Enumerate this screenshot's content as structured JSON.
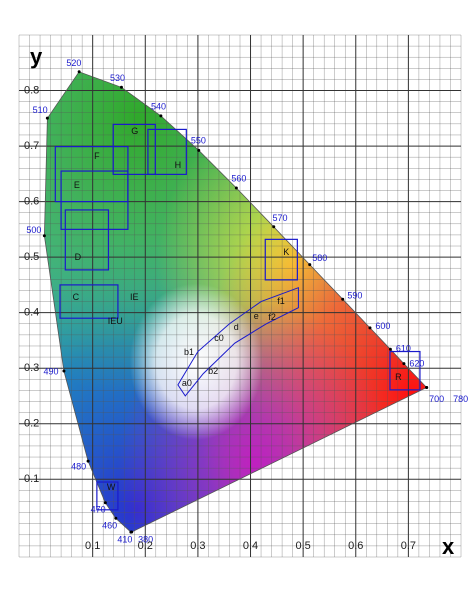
{
  "chart_data": {
    "type": "chromaticity",
    "x_label": "x",
    "y_label": "y",
    "xlim": [
      -0.04,
      0.8
    ],
    "ylim": [
      -0.04,
      0.9
    ],
    "xticks": [
      0.1,
      0.2,
      0.3,
      0.4,
      0.5,
      0.6,
      0.7
    ],
    "yticks": [
      0.1,
      0.2,
      0.3,
      0.4,
      0.5,
      0.6,
      0.7,
      0.8
    ],
    "grid": true,
    "minor_grid_step": 0.02,
    "spectral_locus": {
      "wavelengths": [
        380,
        410,
        460,
        470,
        480,
        490,
        500,
        510,
        520,
        530,
        540,
        550,
        560,
        570,
        580,
        590,
        600,
        610,
        620,
        700,
        780
      ],
      "x": [
        0.1741,
        0.1727,
        0.144,
        0.1241,
        0.0913,
        0.0454,
        0.0082,
        0.0139,
        0.0743,
        0.1547,
        0.2296,
        0.3016,
        0.3731,
        0.4441,
        0.5125,
        0.5752,
        0.627,
        0.6658,
        0.6915,
        0.7347,
        0.7347
      ],
      "y": [
        0.005,
        0.0048,
        0.0297,
        0.0578,
        0.1327,
        0.295,
        0.5384,
        0.7502,
        0.8338,
        0.8059,
        0.7543,
        0.6923,
        0.6245,
        0.5547,
        0.4866,
        0.4242,
        0.3725,
        0.334,
        0.3083,
        0.2653,
        0.2653
      ]
    },
    "regions": [
      {
        "label": "G",
        "x": 0.18,
        "y": 0.726,
        "box": [
          0.139,
          0.649,
          0.219,
          0.739
        ]
      },
      {
        "label": "H",
        "x": 0.262,
        "y": 0.665,
        "box": [
          0.205,
          0.649,
          0.278,
          0.73
        ]
      },
      {
        "label": "F",
        "x": 0.108,
        "y": 0.681,
        "box": [
          0.029,
          0.6,
          0.167,
          0.699
        ]
      },
      {
        "label": "E",
        "x": 0.07,
        "y": 0.629,
        "box": [
          0.04,
          0.55,
          0.167,
          0.655
        ]
      },
      {
        "label": "D",
        "x": 0.072,
        "y": 0.499,
        "box": [
          0.048,
          0.477,
          0.13,
          0.585
        ]
      },
      {
        "label": "C",
        "x": 0.068,
        "y": 0.427,
        "box": [
          0.038,
          0.39,
          0.148,
          0.45
        ]
      },
      {
        "label": "IE",
        "x": 0.179,
        "y": 0.427
      },
      {
        "label": "IEU",
        "x": 0.143,
        "y": 0.384
      },
      {
        "label": "K",
        "x": 0.468,
        "y": 0.508,
        "box": [
          0.428,
          0.459,
          0.489,
          0.532
        ]
      },
      {
        "label": "f1",
        "x": 0.458,
        "y": 0.42
      },
      {
        "label": "e",
        "x": 0.411,
        "y": 0.393
      },
      {
        "label": "f2",
        "x": 0.441,
        "y": 0.391
      },
      {
        "label": "d",
        "x": 0.373,
        "y": 0.373
      },
      {
        "label": "c0",
        "x": 0.34,
        "y": 0.353
      },
      {
        "label": "b1",
        "x": 0.283,
        "y": 0.328
      },
      {
        "label": "b2",
        "x": 0.329,
        "y": 0.294
      },
      {
        "label": "a0",
        "x": 0.279,
        "y": 0.272
      },
      {
        "label": "R",
        "x": 0.681,
        "y": 0.283,
        "box": [
          0.665,
          0.261,
          0.722,
          0.33
        ]
      },
      {
        "label": "W",
        "x": 0.135,
        "y": 0.085,
        "box": [
          0.108,
          0.045,
          0.148,
          0.095
        ]
      }
    ],
    "band": {
      "x": [
        0.262,
        0.3,
        0.36,
        0.42,
        0.491,
        0.491,
        0.43,
        0.37,
        0.31,
        0.276
      ],
      "y": [
        0.27,
        0.33,
        0.38,
        0.42,
        0.445,
        0.409,
        0.38,
        0.345,
        0.29,
        0.25
      ]
    }
  }
}
